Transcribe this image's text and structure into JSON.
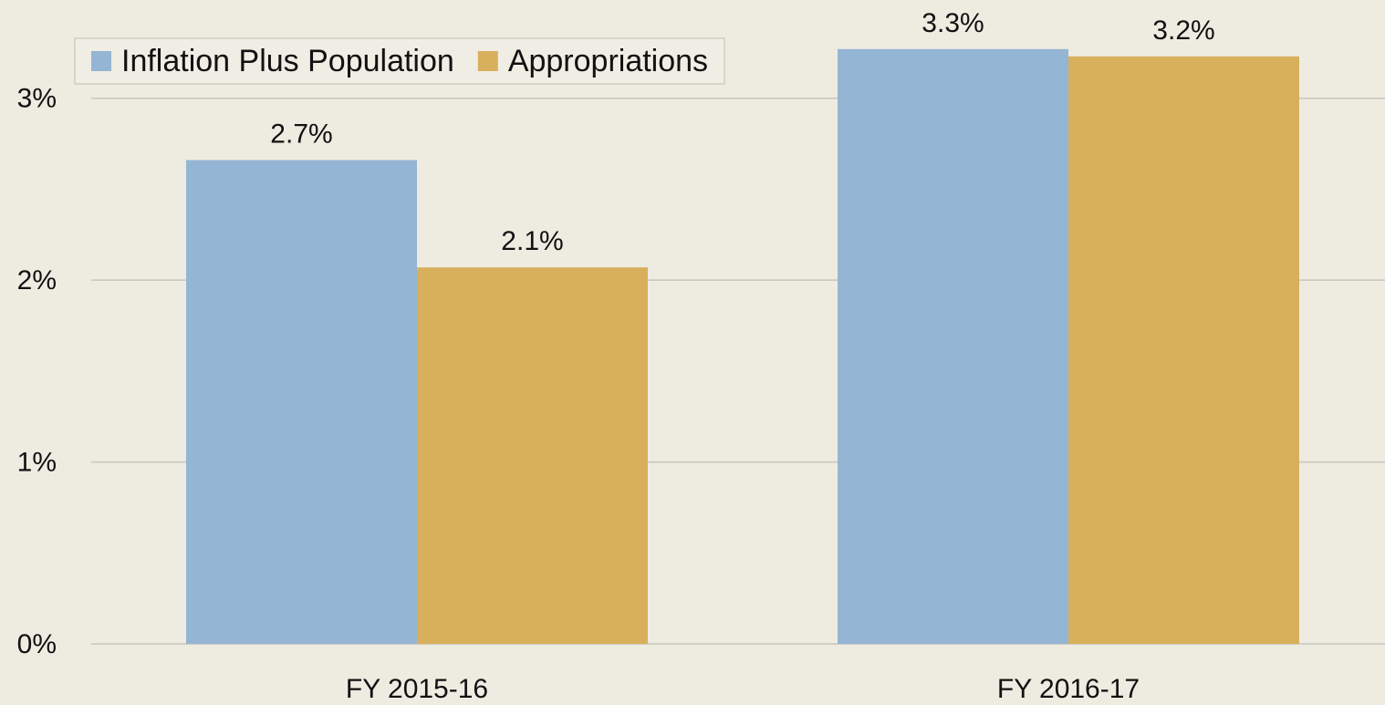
{
  "chart_data": {
    "type": "bar",
    "categories": [
      "FY 2015-16",
      "FY 2016-17"
    ],
    "series": [
      {
        "name": "Inflation Plus Population",
        "color": "#95b5d4",
        "values": [
          2.66,
          3.27
        ],
        "value_labels": [
          "2.7%",
          "3.3%"
        ]
      },
      {
        "name": "Appropriations",
        "color": "#d8b05c",
        "values": [
          2.07,
          3.23
        ],
        "value_labels": [
          "2.1%",
          "3.2%"
        ]
      }
    ],
    "ylim": [
      0,
      3.5
    ],
    "yticks": [
      {
        "value": 0,
        "label": "0%"
      },
      {
        "value": 1,
        "label": "1%"
      },
      {
        "value": 2,
        "label": "2%"
      },
      {
        "value": 3,
        "label": "3%"
      }
    ],
    "grid": true,
    "legend": "upper left"
  }
}
